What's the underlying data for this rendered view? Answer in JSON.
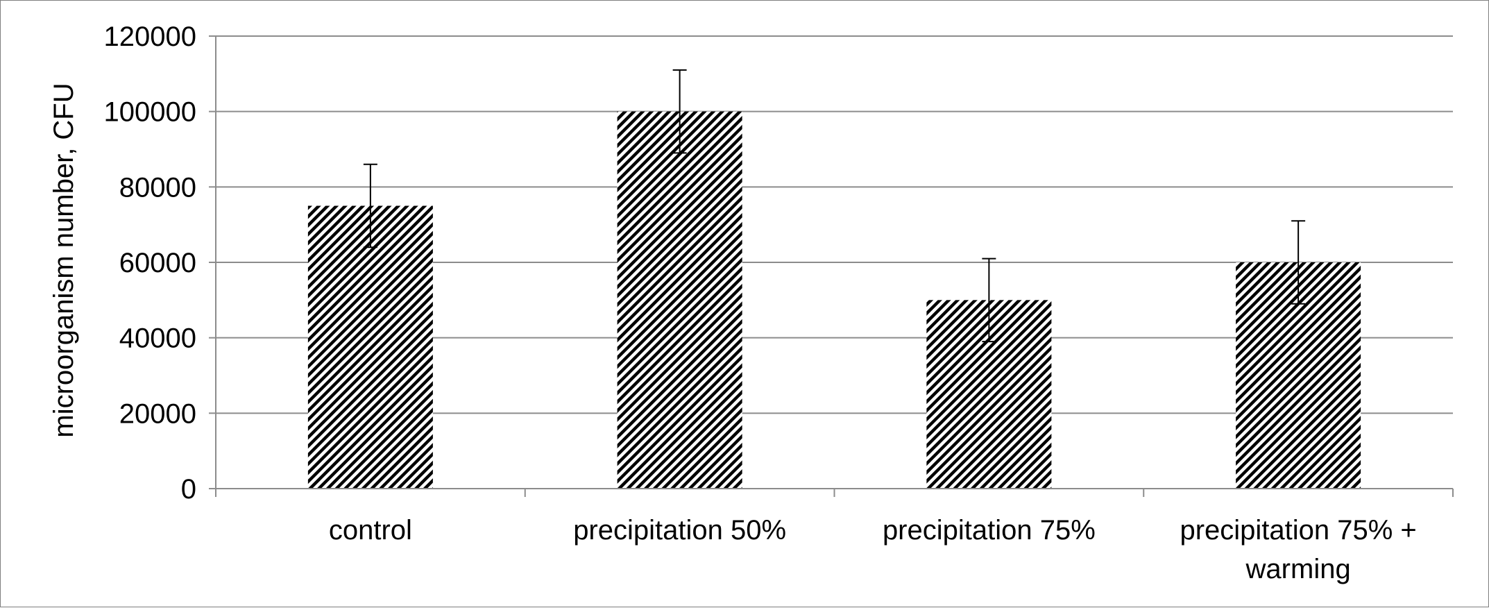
{
  "chart_data": {
    "type": "bar",
    "title": "",
    "xlabel": "",
    "ylabel": "microorganism number, CFU",
    "categories": [
      [
        "control"
      ],
      [
        "precipitation 50%"
      ],
      [
        "precipitation 75%"
      ],
      [
        "precipitation 75% +",
        "warming"
      ]
    ],
    "values": [
      75000,
      100000,
      50000,
      60000
    ],
    "error_bars": [
      {
        "low": 64000,
        "high": 86000
      },
      {
        "low": 89000,
        "high": 111000
      },
      {
        "low": 39000,
        "high": 61000
      },
      {
        "low": 49000,
        "high": 71000
      }
    ],
    "ylim": [
      0,
      120000
    ],
    "yticks": [
      0,
      20000,
      40000,
      60000,
      80000,
      100000,
      120000
    ],
    "ytick_labels": [
      "0",
      "20000",
      "40000",
      "60000",
      "80000",
      "100000",
      "120000"
    ],
    "grid": true,
    "legend": "none",
    "bar_fill": "diagonal-hatch",
    "colors": {
      "bar_hatch": "#000000",
      "bar_background": "#ffffff",
      "gridline": "#8c8c8c",
      "axis": "#8c8c8c",
      "error_bar": "#000000",
      "frame": "#7f7f7f"
    }
  }
}
